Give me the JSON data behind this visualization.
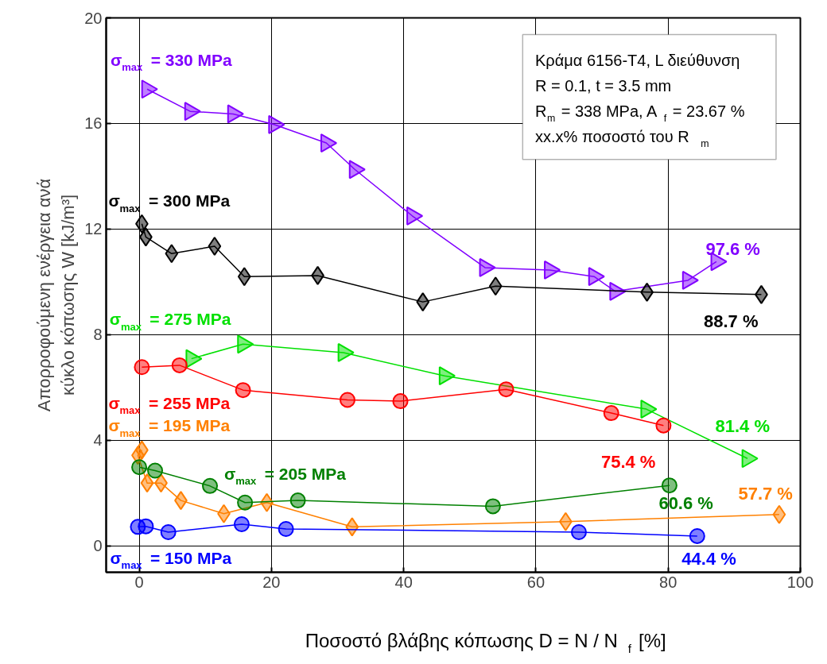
{
  "chart_data": {
    "type": "line",
    "xlabel": "Ποσοστό βλάβης κόπωσης D = N / N$_{f}$ [%]",
    "ylabel": "Απορροφούμενη ενέργεια ανά\nκύκλο κόπωσης W [kJ/m³]",
    "xlim": [
      -5,
      100
    ],
    "xticks": [
      0,
      20,
      40,
      60,
      80,
      100
    ],
    "ylim": [
      -1,
      20
    ],
    "yticks": [
      0,
      4,
      8,
      12,
      16,
      20
    ],
    "grid": true,
    "line_style": "solid",
    "series": [
      {
        "name": "σ$_{max}$ = 330 MPa",
        "color": "#8000ff",
        "marker": "triangle",
        "x": [
          1.2,
          7.7,
          14.2,
          20.4,
          28.3,
          32.6,
          41.3,
          52.3,
          62.1,
          68.8,
          72.0,
          83.0,
          87.3
        ],
        "values": [
          17.3,
          16.46,
          16.36,
          15.96,
          15.26,
          14.26,
          12.5,
          10.54,
          10.45,
          10.2,
          9.64,
          10.06,
          10.77
        ]
      },
      {
        "name": "σ$_{max}$ = 300 MPa",
        "color": "#000000",
        "marker": "diamond",
        "x": [
          0.4,
          1.0,
          4.9,
          11.4,
          15.9,
          27.0,
          42.9,
          53.9,
          76.8,
          94.1
        ],
        "values": [
          12.2,
          11.7,
          11.07,
          11.35,
          10.2,
          10.24,
          9.24,
          9.84,
          9.61,
          9.52
        ]
      },
      {
        "name": "σ$_{max}$ = 275 MPa",
        "color": "#00e000",
        "marker": "triangle",
        "x": [
          7.9,
          15.7,
          30.9,
          46.2,
          76.7,
          92.0
        ],
        "values": [
          7.09,
          7.64,
          7.32,
          6.44,
          5.18,
          3.31
        ]
      },
      {
        "name": "σ$_{max}$ = 255 MPa",
        "color": "#ff0000",
        "marker": "circle",
        "x": [
          0.4,
          6.1,
          15.7,
          31.5,
          39.5,
          55.5,
          71.4,
          79.3
        ],
        "values": [
          6.77,
          6.84,
          5.9,
          5.53,
          5.48,
          5.93,
          5.03,
          4.56
        ]
      },
      {
        "name": "σ$_{max}$ = 195 MPa",
        "color": "#ff8000",
        "marker": "diamond",
        "x": [
          0.4,
          -0.2,
          1.2,
          3.3,
          6.3,
          12.8,
          19.3,
          32.2,
          64.5,
          96.8
        ],
        "values": [
          3.63,
          3.43,
          2.38,
          2.38,
          1.72,
          1.22,
          1.64,
          0.72,
          0.92,
          1.19
        ]
      },
      {
        "name": "σ$_{max}$ = 205 MPa",
        "color": "#008000",
        "marker": "circle",
        "x": [
          0.0,
          2.4,
          10.7,
          16.0,
          24.0,
          53.5,
          80.2
        ],
        "values": [
          2.98,
          2.85,
          2.27,
          1.64,
          1.72,
          1.5,
          2.29
        ]
      },
      {
        "name": "σ$_{max}$ = 150 MPa",
        "color": "#0000ff",
        "marker": "circle",
        "x": [
          -0.2,
          1.0,
          4.4,
          15.5,
          22.2,
          66.5,
          84.4
        ],
        "values": [
          0.72,
          0.74,
          0.52,
          0.82,
          0.64,
          0.52,
          0.37
        ]
      }
    ],
    "annotations": [
      {
        "text": "97.6 %",
        "x": 87.3,
        "y": 10.77
      },
      {
        "text": "88.7 %",
        "x": 94.1,
        "y": 9.52
      },
      {
        "text": "81.4 %",
        "x": 92.0,
        "y": 3.31
      },
      {
        "text": "75.4 %",
        "x": 79.3,
        "y": 4.56
      },
      {
        "text": "57.7 %",
        "x": 96.8,
        "y": 1.19
      },
      {
        "text": "60.6 %",
        "x": 80.2,
        "y": 2.29
      },
      {
        "text": "44.4 %",
        "x": 84.4,
        "y": 0.37
      },
      "Κράμα 6156-T4, L διεύθυνση",
      "R = 0.1, t = 3.5 mm",
      "R$_{m}$ = 338 MPa, A$_{f}$ = 23.67 %",
      "xx.x% ποσοστό του R$_{m}$"
    ]
  }
}
